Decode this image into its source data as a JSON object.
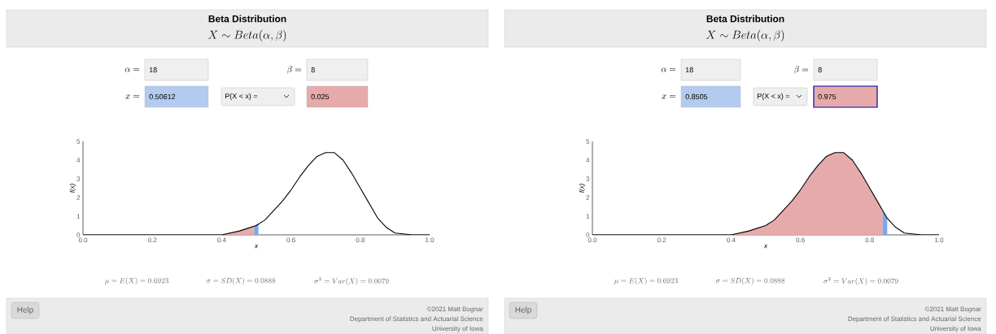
{
  "chart_data": [
    {
      "type": "line",
      "title": "Beta Distribution",
      "subtitle": "X \\sim Beta(\\alpha,\\beta)",
      "xlabel": "x",
      "ylabel": "f(x)",
      "xlim": [
        0,
        1
      ],
      "ylim": [
        0,
        5
      ],
      "xticks": [
        {
          "value": 0,
          "label": "0.0"
        },
        {
          "value": 0.2,
          "label": "0.2"
        },
        {
          "value": 0.4,
          "label": "0.4"
        },
        {
          "value": 0.6,
          "label": "0.6"
        },
        {
          "value": 0.8,
          "label": "0.8"
        },
        {
          "value": 1,
          "label": "1.0"
        }
      ],
      "yticks": [
        0,
        1,
        2,
        3,
        4,
        5
      ],
      "series": [
        {
          "type": "area",
          "color": "#e6aaaa",
          "x": [
            0.4,
            0.45,
            0.494
          ],
          "values": [
            0.0,
            0.2,
            0.5
          ]
        },
        {
          "type": "area",
          "color": "#7ba7e8",
          "x": [
            0.494,
            0.506
          ],
          "values": [
            0.5,
            0.6
          ]
        },
        {
          "color": "#000000",
          "x": [
            0,
            0.35,
            0.4,
            0.45,
            0.5,
            0.525,
            0.55,
            0.575,
            0.6,
            0.625,
            0.65,
            0.675,
            0.7,
            0.725,
            0.75,
            0.775,
            0.8,
            0.825,
            0.85,
            0.875,
            0.9,
            0.95,
            1
          ],
          "values": [
            0,
            0,
            0.0,
            0.2,
            0.5,
            0.8,
            1.3,
            1.8,
            2.4,
            3.1,
            3.7,
            4.2,
            4.4,
            4.4,
            4.0,
            3.3,
            2.5,
            1.7,
            0.9,
            0.4,
            0.1,
            0,
            0
          ]
        }
      ],
      "annotations": [
        "\\alpha =",
        "18",
        "\\beta =",
        "8",
        "x =",
        "0.50612",
        "P(X < x) =",
        "0.025",
        "\\mu = E(X) = 0.6923",
        "\\sigma = SD(X) = 0.0888",
        "\\sigma^2 = Var(X) = 0.0079",
        "Help",
        "©2021 Matt Bognar",
        "Department of Statistics and Actuarial Science",
        "University of Iowa"
      ]
    },
    {
      "type": "line",
      "title": "Beta Distribution",
      "subtitle": "X \\sim Beta(\\alpha,\\beta)",
      "xlabel": "x",
      "ylabel": "f(x)",
      "xlim": [
        0,
        1
      ],
      "ylim": [
        0,
        5
      ],
      "xticks": [
        {
          "value": 0,
          "label": "0.0"
        },
        {
          "value": 0.2,
          "label": "0.2"
        },
        {
          "value": 0.4,
          "label": "0.4"
        },
        {
          "value": 0.6,
          "label": "0.6"
        },
        {
          "value": 0.8,
          "label": "0.8"
        },
        {
          "value": 1,
          "label": "1.0"
        }
      ],
      "yticks": [
        0,
        1,
        2,
        3,
        4,
        5
      ],
      "series": [
        {
          "type": "area",
          "color": "#e6aaaa",
          "x": [
            0,
            0.35,
            0.4,
            0.45,
            0.5,
            0.525,
            0.55,
            0.575,
            0.6,
            0.625,
            0.65,
            0.675,
            0.7,
            0.725,
            0.75,
            0.775,
            0.8,
            0.825,
            0.8375
          ],
          "values": [
            0,
            0,
            0.0,
            0.2,
            0.5,
            0.8,
            1.3,
            1.8,
            2.4,
            3.1,
            3.7,
            4.2,
            4.4,
            4.4,
            4.0,
            3.3,
            2.5,
            1.7,
            1.3
          ]
        },
        {
          "type": "area",
          "color": "#7ba7e8",
          "x": [
            0.8375,
            0.8505
          ],
          "values": [
            1.3,
            0.9
          ]
        },
        {
          "color": "#000000",
          "x": [
            0,
            0.35,
            0.4,
            0.45,
            0.5,
            0.525,
            0.55,
            0.575,
            0.6,
            0.625,
            0.65,
            0.675,
            0.7,
            0.725,
            0.75,
            0.775,
            0.8,
            0.825,
            0.85,
            0.875,
            0.9,
            0.95,
            1
          ],
          "values": [
            0,
            0,
            0.0,
            0.2,
            0.5,
            0.8,
            1.3,
            1.8,
            2.4,
            3.1,
            3.7,
            4.2,
            4.4,
            4.4,
            4.0,
            3.3,
            2.5,
            1.7,
            0.9,
            0.4,
            0.1,
            0,
            0
          ]
        }
      ],
      "annotations": [
        "\\alpha =",
        "18",
        "\\beta =",
        "8",
        "x =",
        "0.8505",
        "P(X < x) =",
        "0.975",
        "\\mu = E(X) = 0.6923",
        "\\sigma = SD(X) = 0.0888",
        "\\sigma^2 = Var(X) = 0.0079",
        "Help",
        "©2021 Matt Bognar",
        "Department of Statistics and Actuarial Science",
        "University of Iowa"
      ]
    }
  ]
}
